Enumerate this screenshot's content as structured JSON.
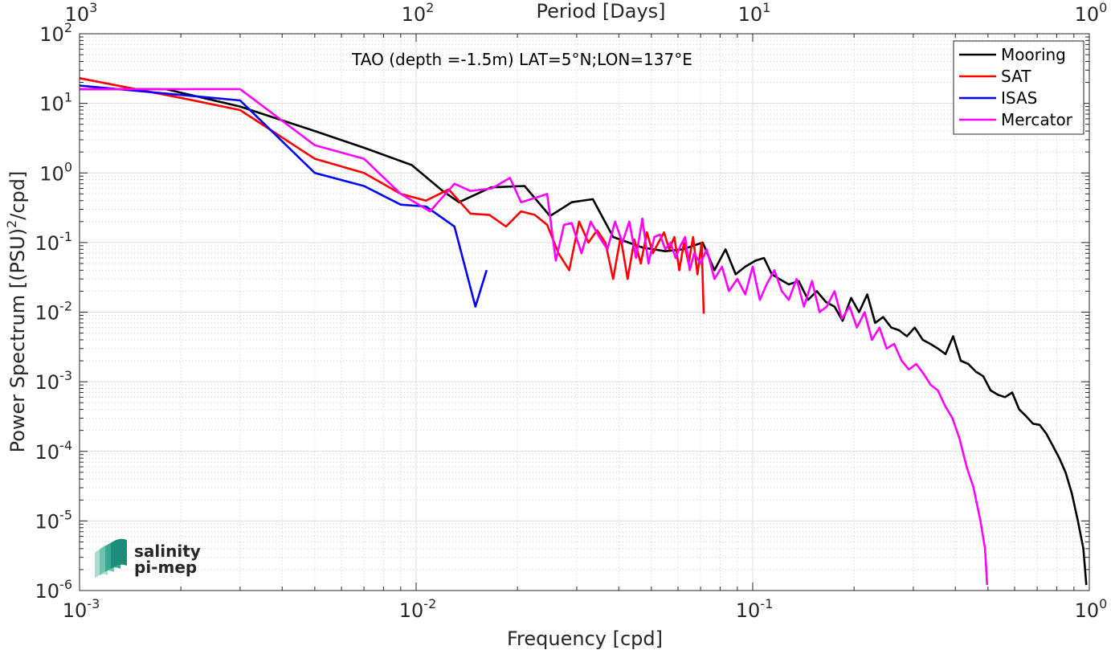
{
  "chart_data": {
    "type": "line",
    "title": "TAO (depth =-1.5m) LAT=5°N;LON=137°E",
    "xlabel": "Frequency [cpd]",
    "ylabel": "Power Spectrum [(PSU)",
    "ylabel_sup": "2",
    "ylabel_tail": "/cpd]",
    "top_xlabel": "Period [Days]",
    "x_scale": "log",
    "y_scale": "log",
    "xlim": [
      0.001,
      1
    ],
    "ylim": [
      1e-06,
      100
    ],
    "grid": true,
    "legend_position": "top-right",
    "x_ticks": [
      {
        "base": "10",
        "exp": "-3"
      },
      {
        "base": "10",
        "exp": "-2"
      },
      {
        "base": "10",
        "exp": "-1"
      },
      {
        "base": "10",
        "exp": "0"
      }
    ],
    "top_ticks": [
      {
        "base": "10",
        "exp": "3"
      },
      {
        "base": "10",
        "exp": "2"
      },
      {
        "base": "10",
        "exp": "1"
      },
      {
        "base": "10",
        "exp": "0"
      }
    ],
    "y_ticks": [
      {
        "base": "10",
        "exp": "-6"
      },
      {
        "base": "10",
        "exp": "-5"
      },
      {
        "base": "10",
        "exp": "-4"
      },
      {
        "base": "10",
        "exp": "-3"
      },
      {
        "base": "10",
        "exp": "-2"
      },
      {
        "base": "10",
        "exp": "-1"
      },
      {
        "base": "10",
        "exp": "0"
      },
      {
        "base": "10",
        "exp": "1"
      },
      {
        "base": "10",
        "exp": "2"
      }
    ],
    "series": [
      {
        "name": "Mooring",
        "color": "#000000",
        "x": [
          0.001,
          0.0018,
          0.003,
          0.005,
          0.007,
          0.0097,
          0.012,
          0.0134,
          0.0167,
          0.021,
          0.025,
          0.029,
          0.0335,
          0.0385,
          0.047,
          0.055,
          0.062,
          0.071,
          0.077,
          0.083,
          0.089,
          0.095,
          0.102,
          0.108,
          0.114,
          0.12,
          0.128,
          0.137,
          0.146,
          0.155,
          0.165,
          0.175,
          0.185,
          0.196,
          0.207,
          0.219,
          0.231,
          0.244,
          0.258,
          0.272,
          0.287,
          0.303,
          0.32,
          0.337,
          0.355,
          0.374,
          0.394,
          0.415,
          0.437,
          0.46,
          0.484,
          0.509,
          0.535,
          0.562,
          0.59,
          0.619,
          0.649,
          0.68,
          0.712,
          0.745,
          0.779,
          0.814,
          0.85,
          0.887,
          0.925,
          0.96,
          0.98
        ],
        "values": [
          16,
          16,
          9,
          4,
          2.3,
          1.3,
          0.55,
          0.38,
          0.62,
          0.65,
          0.24,
          0.38,
          0.42,
          0.12,
          0.085,
          0.075,
          0.08,
          0.1,
          0.04,
          0.08,
          0.035,
          0.045,
          0.055,
          0.06,
          0.035,
          0.03,
          0.025,
          0.028,
          0.015,
          0.02,
          0.014,
          0.012,
          0.0075,
          0.016,
          0.01,
          0.018,
          0.007,
          0.0085,
          0.006,
          0.0055,
          0.0045,
          0.006,
          0.004,
          0.0035,
          0.003,
          0.0025,
          0.0045,
          0.002,
          0.0018,
          0.0014,
          0.0012,
          0.00075,
          0.00065,
          0.0006,
          0.0007,
          0.0004,
          0.00032,
          0.00025,
          0.00024,
          0.00018,
          0.00012,
          8e-05,
          5e-05,
          2.5e-05,
          1e-05,
          4e-06,
          1.2e-06
        ]
      },
      {
        "name": "SAT",
        "color": "#ff0000",
        "x": [
          0.001,
          0.002,
          0.003,
          0.005,
          0.007,
          0.009,
          0.0107,
          0.0125,
          0.0145,
          0.0165,
          0.0185,
          0.0205,
          0.0225,
          0.0245,
          0.0265,
          0.0285,
          0.0305,
          0.0325,
          0.0345,
          0.0365,
          0.0385,
          0.0405,
          0.0425,
          0.0445,
          0.0465,
          0.0485,
          0.0505,
          0.0525,
          0.0545,
          0.0565,
          0.0585,
          0.0605,
          0.0625,
          0.0645,
          0.0665,
          0.0685,
          0.0705,
          0.0715
        ],
        "values": [
          23,
          12,
          8,
          1.6,
          1.0,
          0.5,
          0.4,
          0.58,
          0.26,
          0.25,
          0.17,
          0.28,
          0.25,
          0.18,
          0.07,
          0.04,
          0.2,
          0.1,
          0.15,
          0.1,
          0.03,
          0.12,
          0.03,
          0.11,
          0.05,
          0.14,
          0.07,
          0.1,
          0.14,
          0.08,
          0.12,
          0.04,
          0.1,
          0.05,
          0.12,
          0.035,
          0.1,
          0.0095
        ]
      },
      {
        "name": "ISAS",
        "color": "#0000ff",
        "x": [
          0.001,
          0.003,
          0.005,
          0.007,
          0.009,
          0.0107,
          0.013,
          0.015,
          0.0162
        ],
        "values": [
          18,
          11,
          1.0,
          0.65,
          0.35,
          0.33,
          0.17,
          0.012,
          0.04
        ]
      },
      {
        "name": "Mercator",
        "color": "#ff00ff",
        "x": [
          0.001,
          0.003,
          0.005,
          0.007,
          0.009,
          0.011,
          0.013,
          0.0145,
          0.0168,
          0.019,
          0.0205,
          0.023,
          0.0245,
          0.026,
          0.0275,
          0.029,
          0.031,
          0.033,
          0.035,
          0.037,
          0.039,
          0.041,
          0.043,
          0.045,
          0.047,
          0.049,
          0.051,
          0.053,
          0.055,
          0.057,
          0.059,
          0.061,
          0.063,
          0.065,
          0.067,
          0.07,
          0.073,
          0.077,
          0.081,
          0.085,
          0.09,
          0.095,
          0.1,
          0.105,
          0.11,
          0.116,
          0.122,
          0.128,
          0.135,
          0.142,
          0.15,
          0.158,
          0.166,
          0.175,
          0.184,
          0.194,
          0.204,
          0.215,
          0.226,
          0.238,
          0.25,
          0.263,
          0.277,
          0.291,
          0.306,
          0.322,
          0.338,
          0.355,
          0.373,
          0.392,
          0.412,
          0.432,
          0.453,
          0.475,
          0.49,
          0.497
        ],
        "values": [
          16,
          16,
          2.5,
          1.6,
          0.5,
          0.28,
          0.7,
          0.55,
          0.6,
          0.85,
          0.38,
          0.45,
          0.5,
          0.055,
          0.18,
          0.19,
          0.07,
          0.2,
          0.12,
          0.08,
          0.2,
          0.1,
          0.2,
          0.06,
          0.22,
          0.05,
          0.12,
          0.13,
          0.08,
          0.1,
          0.06,
          0.09,
          0.12,
          0.04,
          0.07,
          0.05,
          0.08,
          0.03,
          0.045,
          0.02,
          0.03,
          0.018,
          0.045,
          0.015,
          0.025,
          0.04,
          0.02,
          0.015,
          0.03,
          0.012,
          0.028,
          0.01,
          0.012,
          0.02,
          0.008,
          0.012,
          0.006,
          0.01,
          0.004,
          0.006,
          0.003,
          0.0035,
          0.002,
          0.0015,
          0.0018,
          0.0013,
          0.0009,
          0.00075,
          0.00045,
          0.0003,
          0.00015,
          6e-05,
          3e-05,
          1e-05,
          4e-06,
          1.2e-06
        ]
      }
    ]
  },
  "logo": {
    "line1": "salinity",
    "line2": "pi-mep",
    "color": "#1aa291"
  }
}
